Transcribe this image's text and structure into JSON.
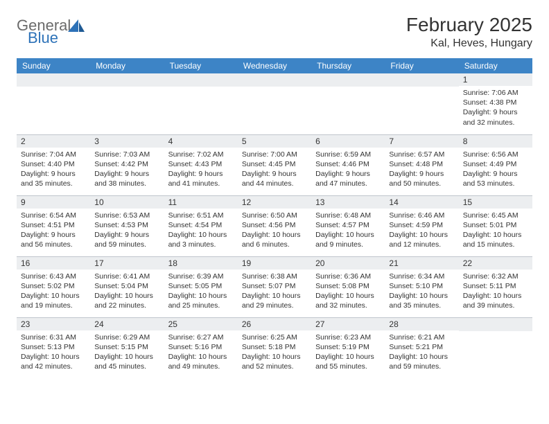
{
  "brand": {
    "line1": "General",
    "line2": "Blue"
  },
  "title": "February 2025",
  "location": "Kal, Heves, Hungary",
  "colors": {
    "header_bg": "#3d84c6",
    "header_text": "#ffffff",
    "daybar_bg": "#eceef0",
    "row_border": "#bfc5cc",
    "text": "#333333",
    "logo_gray": "#6a6a6a",
    "logo_blue": "#2d72b8"
  },
  "weekdays": [
    "Sunday",
    "Monday",
    "Tuesday",
    "Wednesday",
    "Thursday",
    "Friday",
    "Saturday"
  ],
  "weeks": [
    [
      null,
      null,
      null,
      null,
      null,
      null,
      {
        "n": "1",
        "sunrise": "7:06 AM",
        "sunset": "4:38 PM",
        "daylight": "9 hours and 32 minutes."
      }
    ],
    [
      {
        "n": "2",
        "sunrise": "7:04 AM",
        "sunset": "4:40 PM",
        "daylight": "9 hours and 35 minutes."
      },
      {
        "n": "3",
        "sunrise": "7:03 AM",
        "sunset": "4:42 PM",
        "daylight": "9 hours and 38 minutes."
      },
      {
        "n": "4",
        "sunrise": "7:02 AM",
        "sunset": "4:43 PM",
        "daylight": "9 hours and 41 minutes."
      },
      {
        "n": "5",
        "sunrise": "7:00 AM",
        "sunset": "4:45 PM",
        "daylight": "9 hours and 44 minutes."
      },
      {
        "n": "6",
        "sunrise": "6:59 AM",
        "sunset": "4:46 PM",
        "daylight": "9 hours and 47 minutes."
      },
      {
        "n": "7",
        "sunrise": "6:57 AM",
        "sunset": "4:48 PM",
        "daylight": "9 hours and 50 minutes."
      },
      {
        "n": "8",
        "sunrise": "6:56 AM",
        "sunset": "4:49 PM",
        "daylight": "9 hours and 53 minutes."
      }
    ],
    [
      {
        "n": "9",
        "sunrise": "6:54 AM",
        "sunset": "4:51 PM",
        "daylight": "9 hours and 56 minutes."
      },
      {
        "n": "10",
        "sunrise": "6:53 AM",
        "sunset": "4:53 PM",
        "daylight": "9 hours and 59 minutes."
      },
      {
        "n": "11",
        "sunrise": "6:51 AM",
        "sunset": "4:54 PM",
        "daylight": "10 hours and 3 minutes."
      },
      {
        "n": "12",
        "sunrise": "6:50 AM",
        "sunset": "4:56 PM",
        "daylight": "10 hours and 6 minutes."
      },
      {
        "n": "13",
        "sunrise": "6:48 AM",
        "sunset": "4:57 PM",
        "daylight": "10 hours and 9 minutes."
      },
      {
        "n": "14",
        "sunrise": "6:46 AM",
        "sunset": "4:59 PM",
        "daylight": "10 hours and 12 minutes."
      },
      {
        "n": "15",
        "sunrise": "6:45 AM",
        "sunset": "5:01 PM",
        "daylight": "10 hours and 15 minutes."
      }
    ],
    [
      {
        "n": "16",
        "sunrise": "6:43 AM",
        "sunset": "5:02 PM",
        "daylight": "10 hours and 19 minutes."
      },
      {
        "n": "17",
        "sunrise": "6:41 AM",
        "sunset": "5:04 PM",
        "daylight": "10 hours and 22 minutes."
      },
      {
        "n": "18",
        "sunrise": "6:39 AM",
        "sunset": "5:05 PM",
        "daylight": "10 hours and 25 minutes."
      },
      {
        "n": "19",
        "sunrise": "6:38 AM",
        "sunset": "5:07 PM",
        "daylight": "10 hours and 29 minutes."
      },
      {
        "n": "20",
        "sunrise": "6:36 AM",
        "sunset": "5:08 PM",
        "daylight": "10 hours and 32 minutes."
      },
      {
        "n": "21",
        "sunrise": "6:34 AM",
        "sunset": "5:10 PM",
        "daylight": "10 hours and 35 minutes."
      },
      {
        "n": "22",
        "sunrise": "6:32 AM",
        "sunset": "5:11 PM",
        "daylight": "10 hours and 39 minutes."
      }
    ],
    [
      {
        "n": "23",
        "sunrise": "6:31 AM",
        "sunset": "5:13 PM",
        "daylight": "10 hours and 42 minutes."
      },
      {
        "n": "24",
        "sunrise": "6:29 AM",
        "sunset": "5:15 PM",
        "daylight": "10 hours and 45 minutes."
      },
      {
        "n": "25",
        "sunrise": "6:27 AM",
        "sunset": "5:16 PM",
        "daylight": "10 hours and 49 minutes."
      },
      {
        "n": "26",
        "sunrise": "6:25 AM",
        "sunset": "5:18 PM",
        "daylight": "10 hours and 52 minutes."
      },
      {
        "n": "27",
        "sunrise": "6:23 AM",
        "sunset": "5:19 PM",
        "daylight": "10 hours and 55 minutes."
      },
      {
        "n": "28",
        "sunrise": "6:21 AM",
        "sunset": "5:21 PM",
        "daylight": "10 hours and 59 minutes."
      },
      null
    ]
  ],
  "labels": {
    "sunrise": "Sunrise:",
    "sunset": "Sunset:",
    "daylight": "Daylight:"
  }
}
